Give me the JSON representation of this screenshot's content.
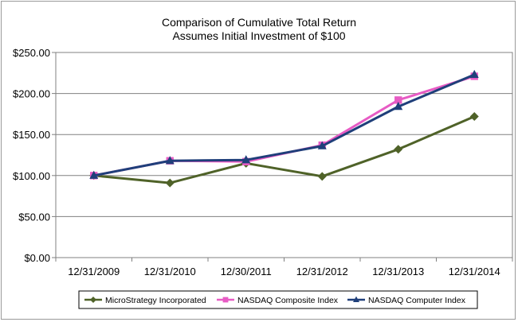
{
  "chart_data": {
    "type": "line",
    "title": "Comparison of  Cumulative Total Return",
    "subtitle": "Assumes Initial Investment of $100",
    "categories": [
      "12/31/2009",
      "12/31/2010",
      "12/30/2011",
      "12/31/2012",
      "12/31/2013",
      "12/31/2014"
    ],
    "ylim": [
      0,
      250
    ],
    "yticks": [
      0,
      50,
      100,
      150,
      200,
      250
    ],
    "ytick_labels": [
      "$0.00",
      "$50.00",
      "$100.00",
      "$150.00",
      "$200.00",
      "$250.00"
    ],
    "grid": true,
    "legend_position": "bottom",
    "series": [
      {
        "name": "MicroStrategy Incorporated",
        "color": "#4F6228",
        "marker": "diamond",
        "values": [
          100,
          91,
          115,
          99,
          132,
          172
        ]
      },
      {
        "name": "NASDAQ Composite Index",
        "color": "#E75BC4",
        "marker": "square",
        "values": [
          100,
          118,
          117,
          137,
          192,
          221
        ]
      },
      {
        "name": "NASDAQ Computer Index",
        "color": "#1F3F7A",
        "marker": "triangle",
        "values": [
          100,
          118,
          119,
          136,
          184,
          223
        ]
      }
    ]
  }
}
